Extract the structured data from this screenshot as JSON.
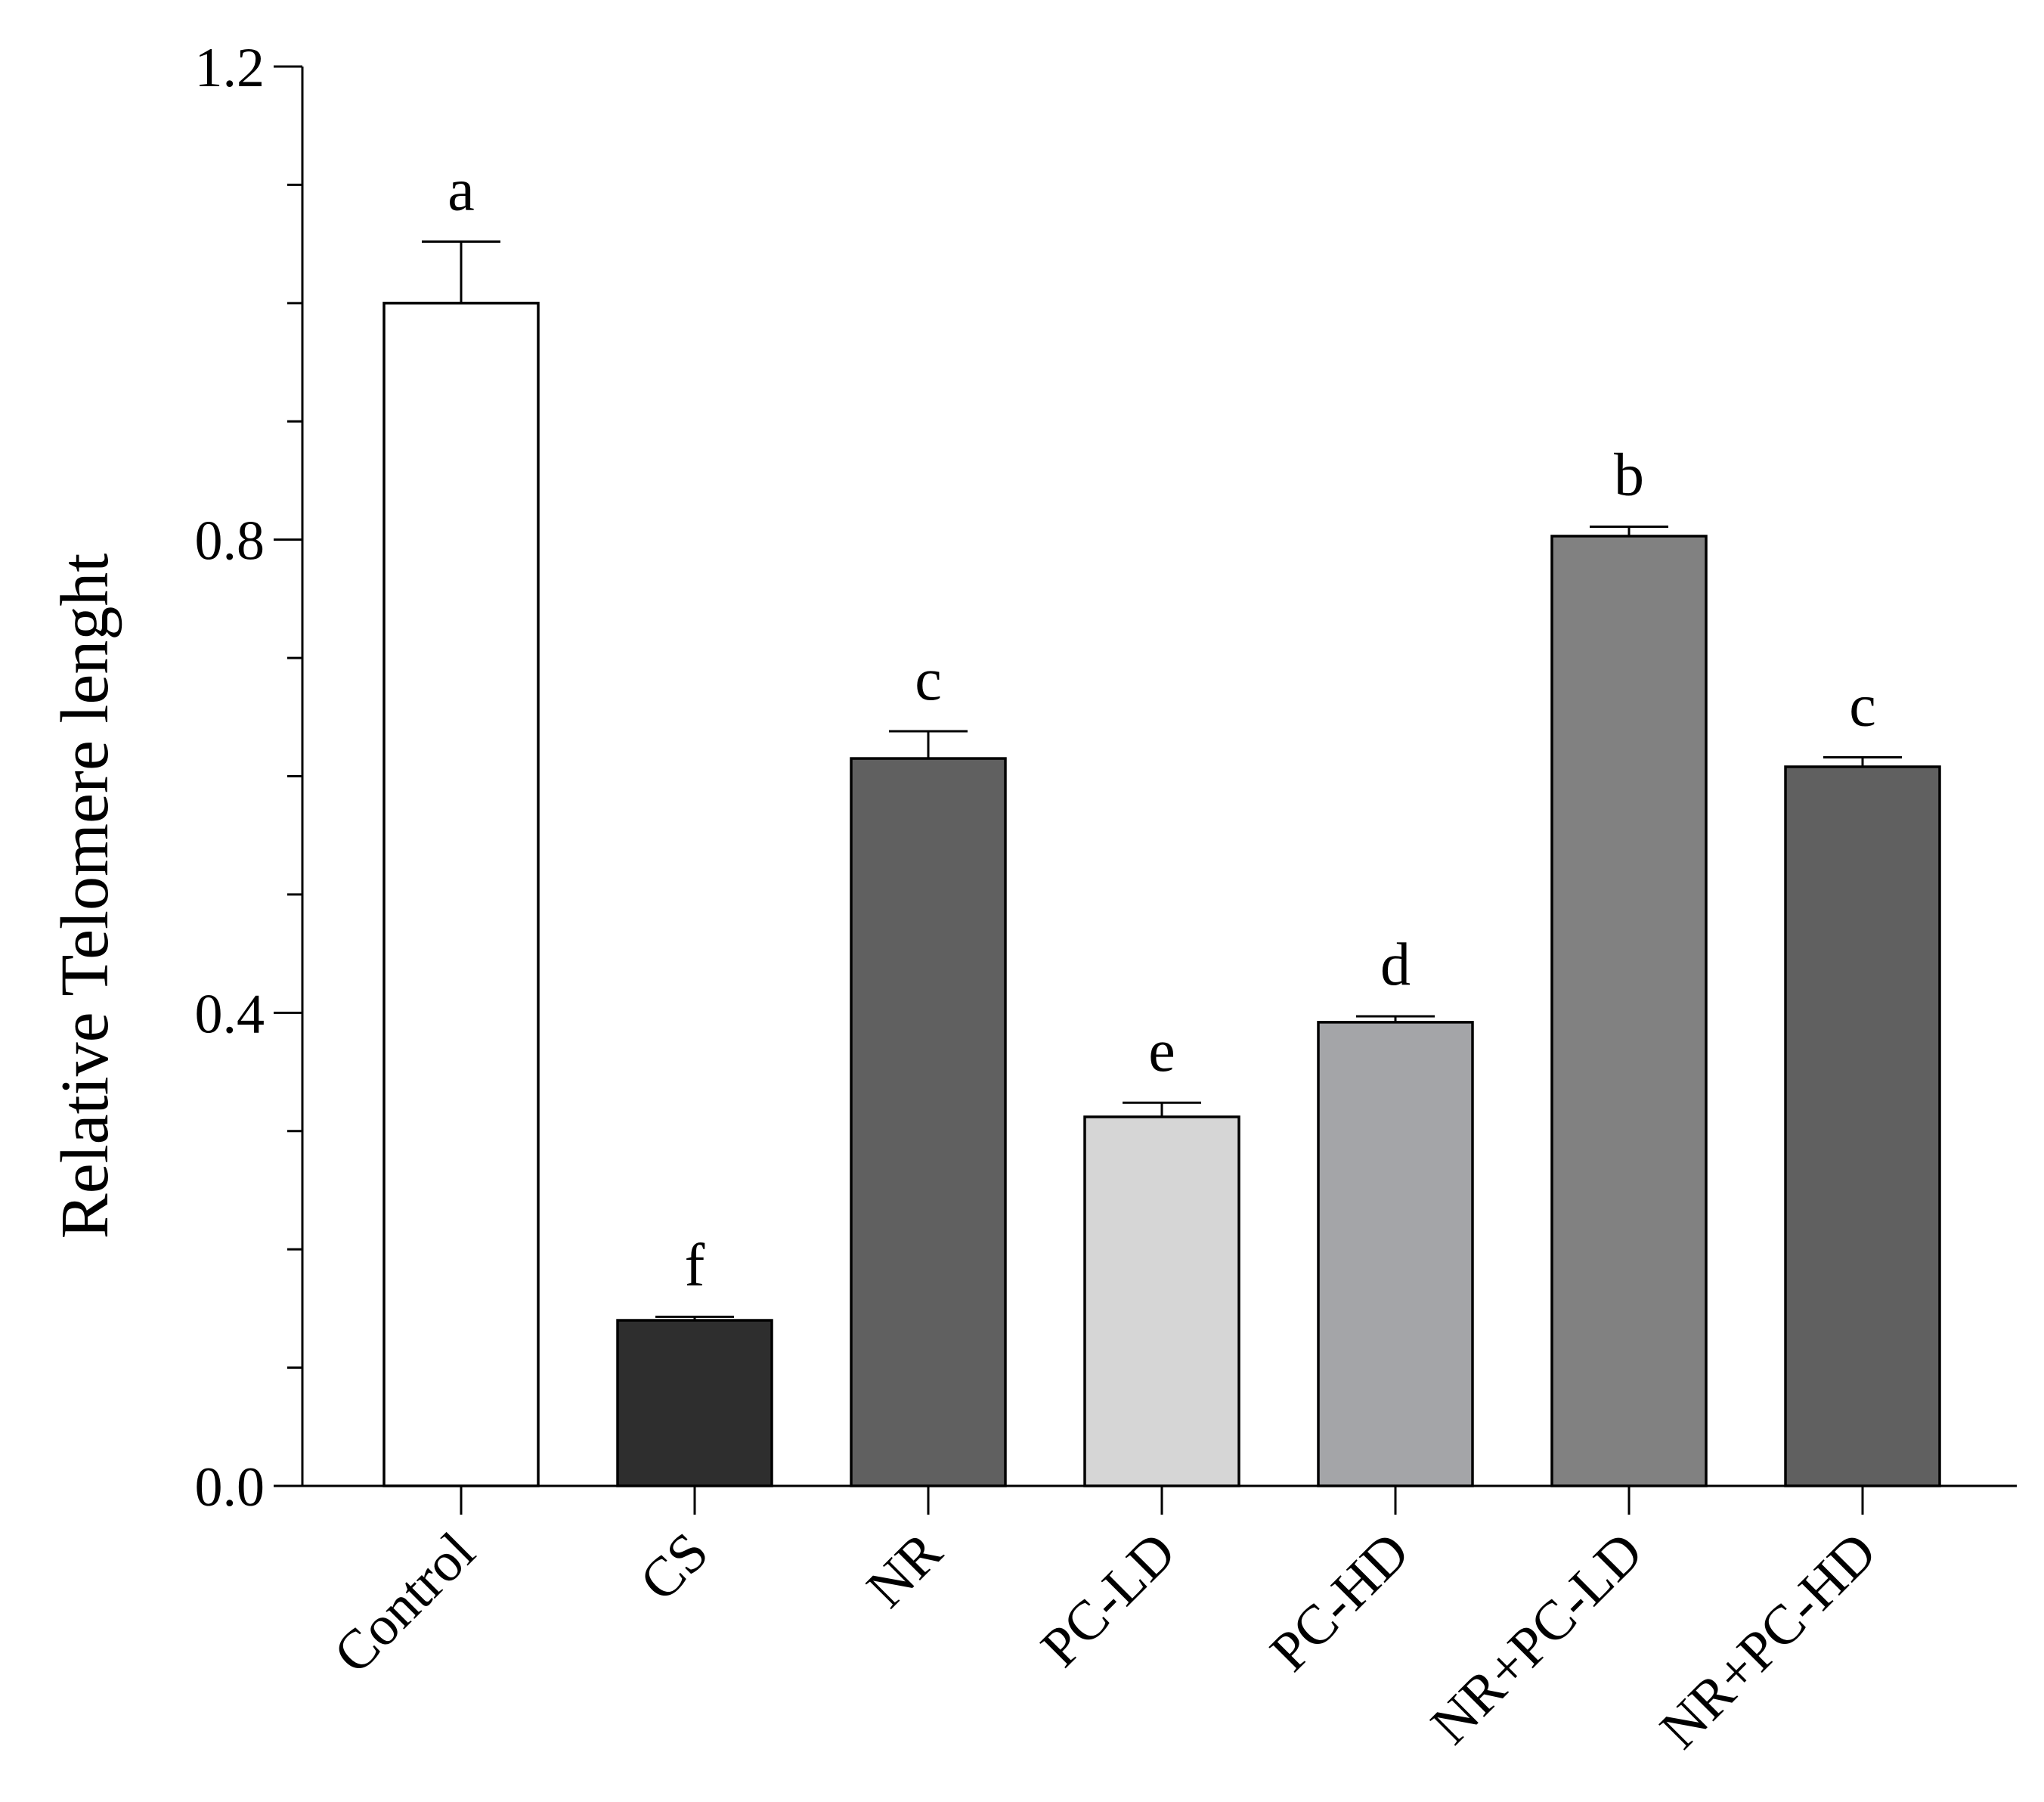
{
  "chart_data": {
    "type": "bar",
    "title": "",
    "xlabel": "",
    "ylabel": "Relative Telomere lenght",
    "ylim": [
      0,
      1.2
    ],
    "yticks": [
      0.0,
      0.4,
      0.8,
      1.2
    ],
    "ytick_labels": [
      "0.0",
      "0.4",
      "0.8",
      "1.2"
    ],
    "categories": [
      "Control",
      "CS",
      "NR",
      "PC-LD",
      "PC-HD",
      "NR+PC-LD",
      "NR+PC-HD"
    ],
    "values": [
      1.0,
      0.14,
      0.615,
      0.312,
      0.392,
      0.803,
      0.608
    ],
    "errors": [
      0.052,
      0.003,
      0.023,
      0.012,
      0.005,
      0.008,
      0.008
    ],
    "significance": [
      "a",
      "f",
      "c",
      "e",
      "d",
      "b",
      "c"
    ],
    "bar_colors": [
      "#ffffff",
      "#2e2e2e",
      "#606060",
      "#d6d6d6",
      "#a4a5a8",
      "#818181",
      "#606060"
    ],
    "grid": false,
    "legend": "none"
  }
}
